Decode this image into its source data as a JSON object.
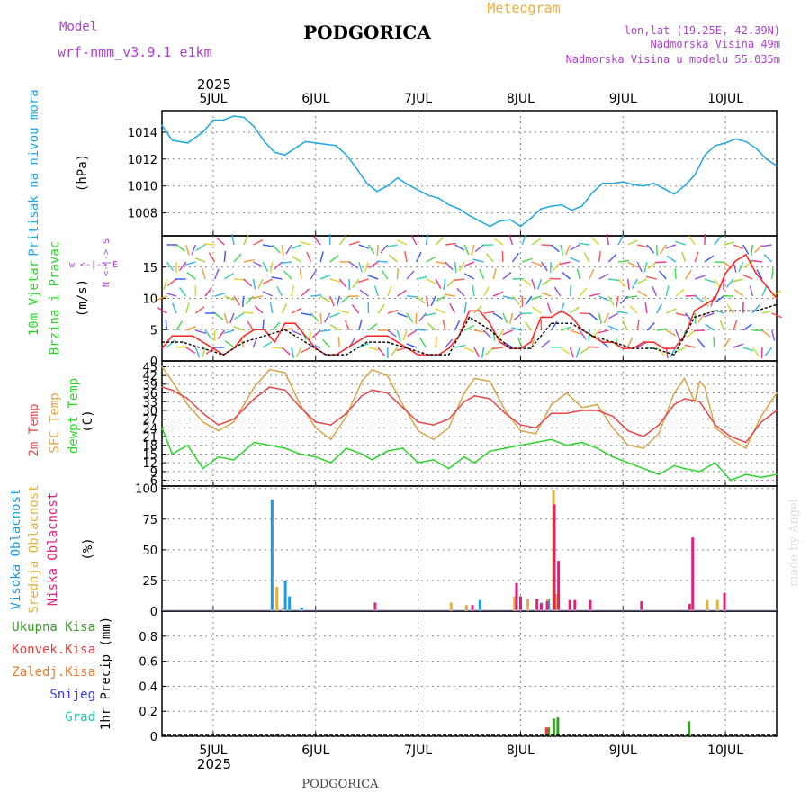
{
  "header": {
    "model_label": "Model",
    "model_name": "wrf-nmm_v3.9.1  e1km",
    "city": "PODGORICA",
    "chart_kind": "Meteogram",
    "coords": "lon,lat (19.25E, 42.39N)",
    "elevation": "Nadmorska Visina 49m",
    "model_elevation": "Nadmorska Visina u modelu 55.035m",
    "year": "2025",
    "footer_city": "PODGORICA",
    "credit": "made by Angel"
  },
  "colors": {
    "pressure": "#1ea7e1",
    "t2m": "#e8474a",
    "sfc": "#d9a449",
    "dewpt": "#2ad42a",
    "grid": "#888888",
    "wind_speed": "#ff2222",
    "gust": "#111111",
    "cloud_high": "#1e9be0",
    "cloud_mid": "#e0b040",
    "cloud_low": "#e0207a",
    "precip_total": "#3a9a2a",
    "precip_conv": "#e84040",
    "wind_dir_label": "#b040d0"
  },
  "chart_data": [
    {
      "type": "line",
      "panel": "pressure",
      "ylabel_lines": [
        "Pritisak na nivou mora",
        "(hPa)"
      ],
      "x_ticks": [
        "5JUL",
        "6JUL",
        "7JUL",
        "8JUL",
        "9JUL",
        "10JUL"
      ],
      "x_range_days": [
        4.5,
        10.5
      ],
      "ylim": [
        1006.3,
        1015.6
      ],
      "yticks": [
        1008,
        1010,
        1012,
        1014
      ],
      "series": [
        {
          "x": [
            4.5,
            4.6,
            4.75,
            4.9,
            5.0,
            5.1,
            5.2,
            5.3,
            5.4,
            5.5,
            5.6,
            5.7,
            5.8,
            5.9,
            6.0,
            6.1,
            6.2,
            6.3,
            6.4,
            6.5,
            6.6,
            6.7,
            6.8,
            6.9,
            7.0,
            7.1,
            7.2,
            7.3,
            7.4,
            7.5,
            7.6,
            7.7,
            7.8,
            7.9,
            8.0,
            8.1,
            8.2,
            8.3,
            8.4,
            8.5,
            8.6,
            8.7,
            8.8,
            8.9,
            9.0,
            9.1,
            9.2,
            9.3,
            9.4,
            9.5,
            9.6,
            9.7,
            9.8,
            9.9,
            10.0,
            10.1,
            10.2,
            10.3,
            10.4,
            10.5
          ],
          "values": [
            1014.5,
            1013.4,
            1013.2,
            1014.0,
            1014.9,
            1014.9,
            1015.2,
            1015.1,
            1014.4,
            1013.3,
            1012.5,
            1012.3,
            1012.8,
            1013.3,
            1013.2,
            1013.1,
            1013.0,
            1012.3,
            1011.3,
            1010.2,
            1009.6,
            1010.0,
            1010.6,
            1010.1,
            1009.7,
            1009.3,
            1009.1,
            1008.6,
            1008.3,
            1007.8,
            1007.4,
            1007.0,
            1007.4,
            1007.5,
            1007.0,
            1007.6,
            1008.3,
            1008.5,
            1008.6,
            1008.2,
            1008.5,
            1009.5,
            1010.2,
            1010.2,
            1010.3,
            1010.1,
            1010.0,
            1010.2,
            1009.8,
            1009.4,
            1010.0,
            1010.8,
            1012.3,
            1013.0,
            1013.2,
            1013.5,
            1013.3,
            1012.8,
            1012.0,
            1011.5
          ]
        }
      ]
    },
    {
      "type": "line",
      "panel": "wind",
      "ylabel_lines": [
        "10m Vjetar",
        "Brzina i Pravac",
        "(m/s)"
      ],
      "direction_key": "w <-|-> E",
      "direction_key_vertical": "N <-|-> S",
      "ylim": [
        0,
        20
      ],
      "yticks": [
        0,
        5,
        10,
        15
      ],
      "series": [
        {
          "name": "",
          "x": [
            4.5,
            4.6,
            4.7,
            4.8,
            4.9,
            5.0,
            5.1,
            5.2,
            5.3,
            5.4,
            5.5,
            5.6,
            5.7,
            5.8,
            5.9,
            6.0,
            6.1,
            6.2,
            6.3,
            6.4,
            6.5,
            6.6,
            6.7,
            6.8,
            6.9,
            7.0,
            7.1,
            7.2,
            7.3,
            7.4,
            7.5,
            7.6,
            7.7,
            7.8,
            7.9,
            8.0,
            8.1,
            8.2,
            8.3,
            8.4,
            8.5,
            8.6,
            8.7,
            8.8,
            8.9,
            9.0,
            9.1,
            9.2,
            9.3,
            9.4,
            9.5,
            9.6,
            9.7,
            9.8,
            9.9,
            10.0,
            10.1,
            10.2,
            10.3,
            10.4,
            10.5
          ],
          "values": [
            2,
            4,
            4,
            4,
            3,
            2,
            1,
            2,
            4,
            5,
            5,
            3,
            6,
            6,
            4,
            2,
            1,
            1,
            2,
            3,
            4,
            4,
            4,
            3,
            2,
            1,
            1,
            1,
            2,
            4,
            8,
            8,
            6,
            3,
            2,
            2,
            3,
            7,
            7,
            8,
            7,
            5,
            4,
            3,
            3,
            2,
            2,
            3,
            3,
            2,
            2,
            4,
            8,
            9,
            10,
            14,
            16,
            17,
            14,
            12,
            10
          ]
        },
        {
          "name": "",
          "x": [
            4.5,
            4.7,
            4.9,
            5.1,
            5.3,
            5.5,
            5.7,
            5.9,
            6.1,
            6.3,
            6.5,
            6.7,
            6.9,
            7.1,
            7.3,
            7.5,
            7.7,
            7.9,
            8.1,
            8.3,
            8.5,
            8.7,
            8.9,
            9.1,
            9.3,
            9.5,
            9.7,
            9.9,
            10.1,
            10.3,
            10.5
          ],
          "values": [
            3,
            3,
            2,
            1,
            3,
            4,
            5,
            3,
            1,
            1,
            3,
            3,
            2,
            1,
            1,
            7,
            5,
            2,
            2,
            6,
            6,
            4,
            3,
            2,
            2,
            1,
            7,
            8,
            8,
            8,
            9
          ]
        }
      ]
    },
    {
      "type": "line",
      "panel": "temperature",
      "ylabel_lines": [
        "2m Temp",
        "SFC Temp",
        "dewpt Temp",
        "(C)"
      ],
      "ylim": [
        4,
        47
      ],
      "yticks": [
        6,
        9,
        12,
        15,
        18,
        21,
        24,
        27,
        30,
        33,
        36,
        39,
        42,
        45
      ],
      "series": [
        {
          "name": "2m Temp",
          "x": [
            4.5,
            4.6,
            4.75,
            4.9,
            5.05,
            5.2,
            5.4,
            5.55,
            5.7,
            5.85,
            6.0,
            6.15,
            6.3,
            6.45,
            6.55,
            6.7,
            6.85,
            7.0,
            7.15,
            7.3,
            7.45,
            7.55,
            7.7,
            7.85,
            8.0,
            8.15,
            8.3,
            8.45,
            8.6,
            8.75,
            8.9,
            9.05,
            9.2,
            9.35,
            9.5,
            9.6,
            9.75,
            9.9,
            10.05,
            10.2,
            10.35,
            10.5
          ],
          "values": [
            38,
            37,
            34,
            29,
            25,
            27,
            34,
            38,
            37,
            31,
            26,
            25,
            29,
            35,
            37,
            36,
            31,
            26,
            25,
            27,
            33,
            35,
            34,
            29,
            25,
            24,
            29,
            29,
            30,
            30,
            28,
            23,
            21,
            25,
            32,
            34,
            33,
            25,
            21,
            19,
            26,
            30
          ]
        },
        {
          "name": "SFC Temp",
          "x": [
            4.5,
            4.6,
            4.75,
            4.9,
            5.05,
            5.2,
            5.4,
            5.55,
            5.7,
            5.85,
            6.0,
            6.15,
            6.3,
            6.45,
            6.55,
            6.7,
            6.85,
            7.0,
            7.15,
            7.3,
            7.45,
            7.55,
            7.7,
            7.85,
            8.0,
            8.15,
            8.3,
            8.45,
            8.6,
            8.75,
            8.9,
            9.05,
            9.2,
            9.35,
            9.5,
            9.6,
            9.7,
            9.75,
            9.8,
            9.9,
            10.05,
            10.2,
            10.35,
            10.5
          ],
          "values": [
            45,
            40,
            32,
            26,
            23,
            26,
            38,
            44,
            43,
            32,
            24,
            20,
            28,
            40,
            44,
            42,
            32,
            23,
            20,
            24,
            36,
            41,
            40,
            30,
            23,
            22,
            32,
            36,
            31,
            32,
            24,
            18,
            17,
            22,
            36,
            41,
            33,
            40,
            38,
            24,
            20,
            17,
            28,
            36
          ]
        },
        {
          "name": "dewpt Temp",
          "x": [
            4.5,
            4.6,
            4.75,
            4.9,
            5.05,
            5.2,
            5.4,
            5.55,
            5.7,
            5.85,
            6.0,
            6.15,
            6.3,
            6.45,
            6.55,
            6.7,
            6.85,
            7.0,
            7.15,
            7.3,
            7.45,
            7.55,
            7.7,
            7.85,
            8.0,
            8.15,
            8.3,
            8.45,
            8.6,
            8.75,
            8.9,
            9.05,
            9.2,
            9.35,
            9.5,
            9.6,
            9.75,
            9.9,
            10.05,
            10.2,
            10.35,
            10.5
          ],
          "values": [
            24,
            15,
            18,
            10,
            14,
            13,
            19,
            18,
            17,
            15,
            14,
            12,
            17,
            15,
            13,
            16,
            17,
            12,
            13,
            10,
            14,
            12,
            16,
            17,
            18,
            19,
            20,
            18,
            19,
            17,
            14,
            12,
            10,
            8,
            11,
            10,
            9,
            12,
            6,
            8,
            7,
            8
          ]
        }
      ]
    },
    {
      "type": "bar",
      "panel": "clouds",
      "ylabel_lines": [
        "Visoka Oblacnost",
        "Srednja Oblacnost",
        "Niska Oblacnost",
        "(%)"
      ],
      "ylim": [
        0,
        102
      ],
      "yticks": [
        0,
        25,
        50,
        75,
        100
      ],
      "series": [
        {
          "name": "Visoka Oblacnost",
          "x": [
            5.57,
            5.7,
            5.74,
            5.86,
            7.6,
            8.2,
            8.27
          ],
          "values": [
            91,
            25,
            12,
            3,
            9,
            7,
            10
          ]
        },
        {
          "name": "Srednja Oblacnost",
          "x": [
            5.6,
            5.66,
            7.3,
            7.45,
            7.92,
            8.05,
            8.24,
            8.3,
            8.33,
            9.8,
            9.9
          ],
          "values": [
            20,
            3,
            7,
            5,
            12,
            10,
            10,
            99,
            14,
            9,
            9
          ]
        },
        {
          "name": "Niska Oblacnost",
          "x": [
            6.55,
            7.5,
            7.93,
            7.97,
            8.13,
            8.17,
            8.23,
            8.3,
            8.34,
            8.45,
            8.5,
            8.65,
            9.15,
            9.62,
            9.65,
            9.96
          ],
          "values": [
            7,
            5,
            23,
            12,
            10,
            6,
            8,
            87,
            41,
            9,
            9,
            9,
            8,
            6,
            60,
            15
          ]
        }
      ]
    },
    {
      "type": "bar",
      "panel": "precipitation",
      "ylabel_lines": [
        "1hr Precip (mm)"
      ],
      "legend": [
        "Ukupna Kisa",
        "Konvek.Kisa",
        "Zaledj.Kisa",
        "Snijeg",
        "Grad"
      ],
      "ylim": [
        0,
        1.0
      ],
      "yticks": [
        0,
        0.2,
        0.4,
        0.6,
        0.8
      ],
      "series": [
        {
          "name": "Ukupna Kisa",
          "x": [
            5.63,
            8.27,
            8.32,
            8.36,
            9.64
          ],
          "values": [
            0.02,
            0.07,
            0.14,
            0.15,
            0.12
          ]
        },
        {
          "name": "Konvek.Kisa",
          "x": [
            8.24
          ],
          "values": [
            0.07
          ]
        }
      ]
    }
  ]
}
